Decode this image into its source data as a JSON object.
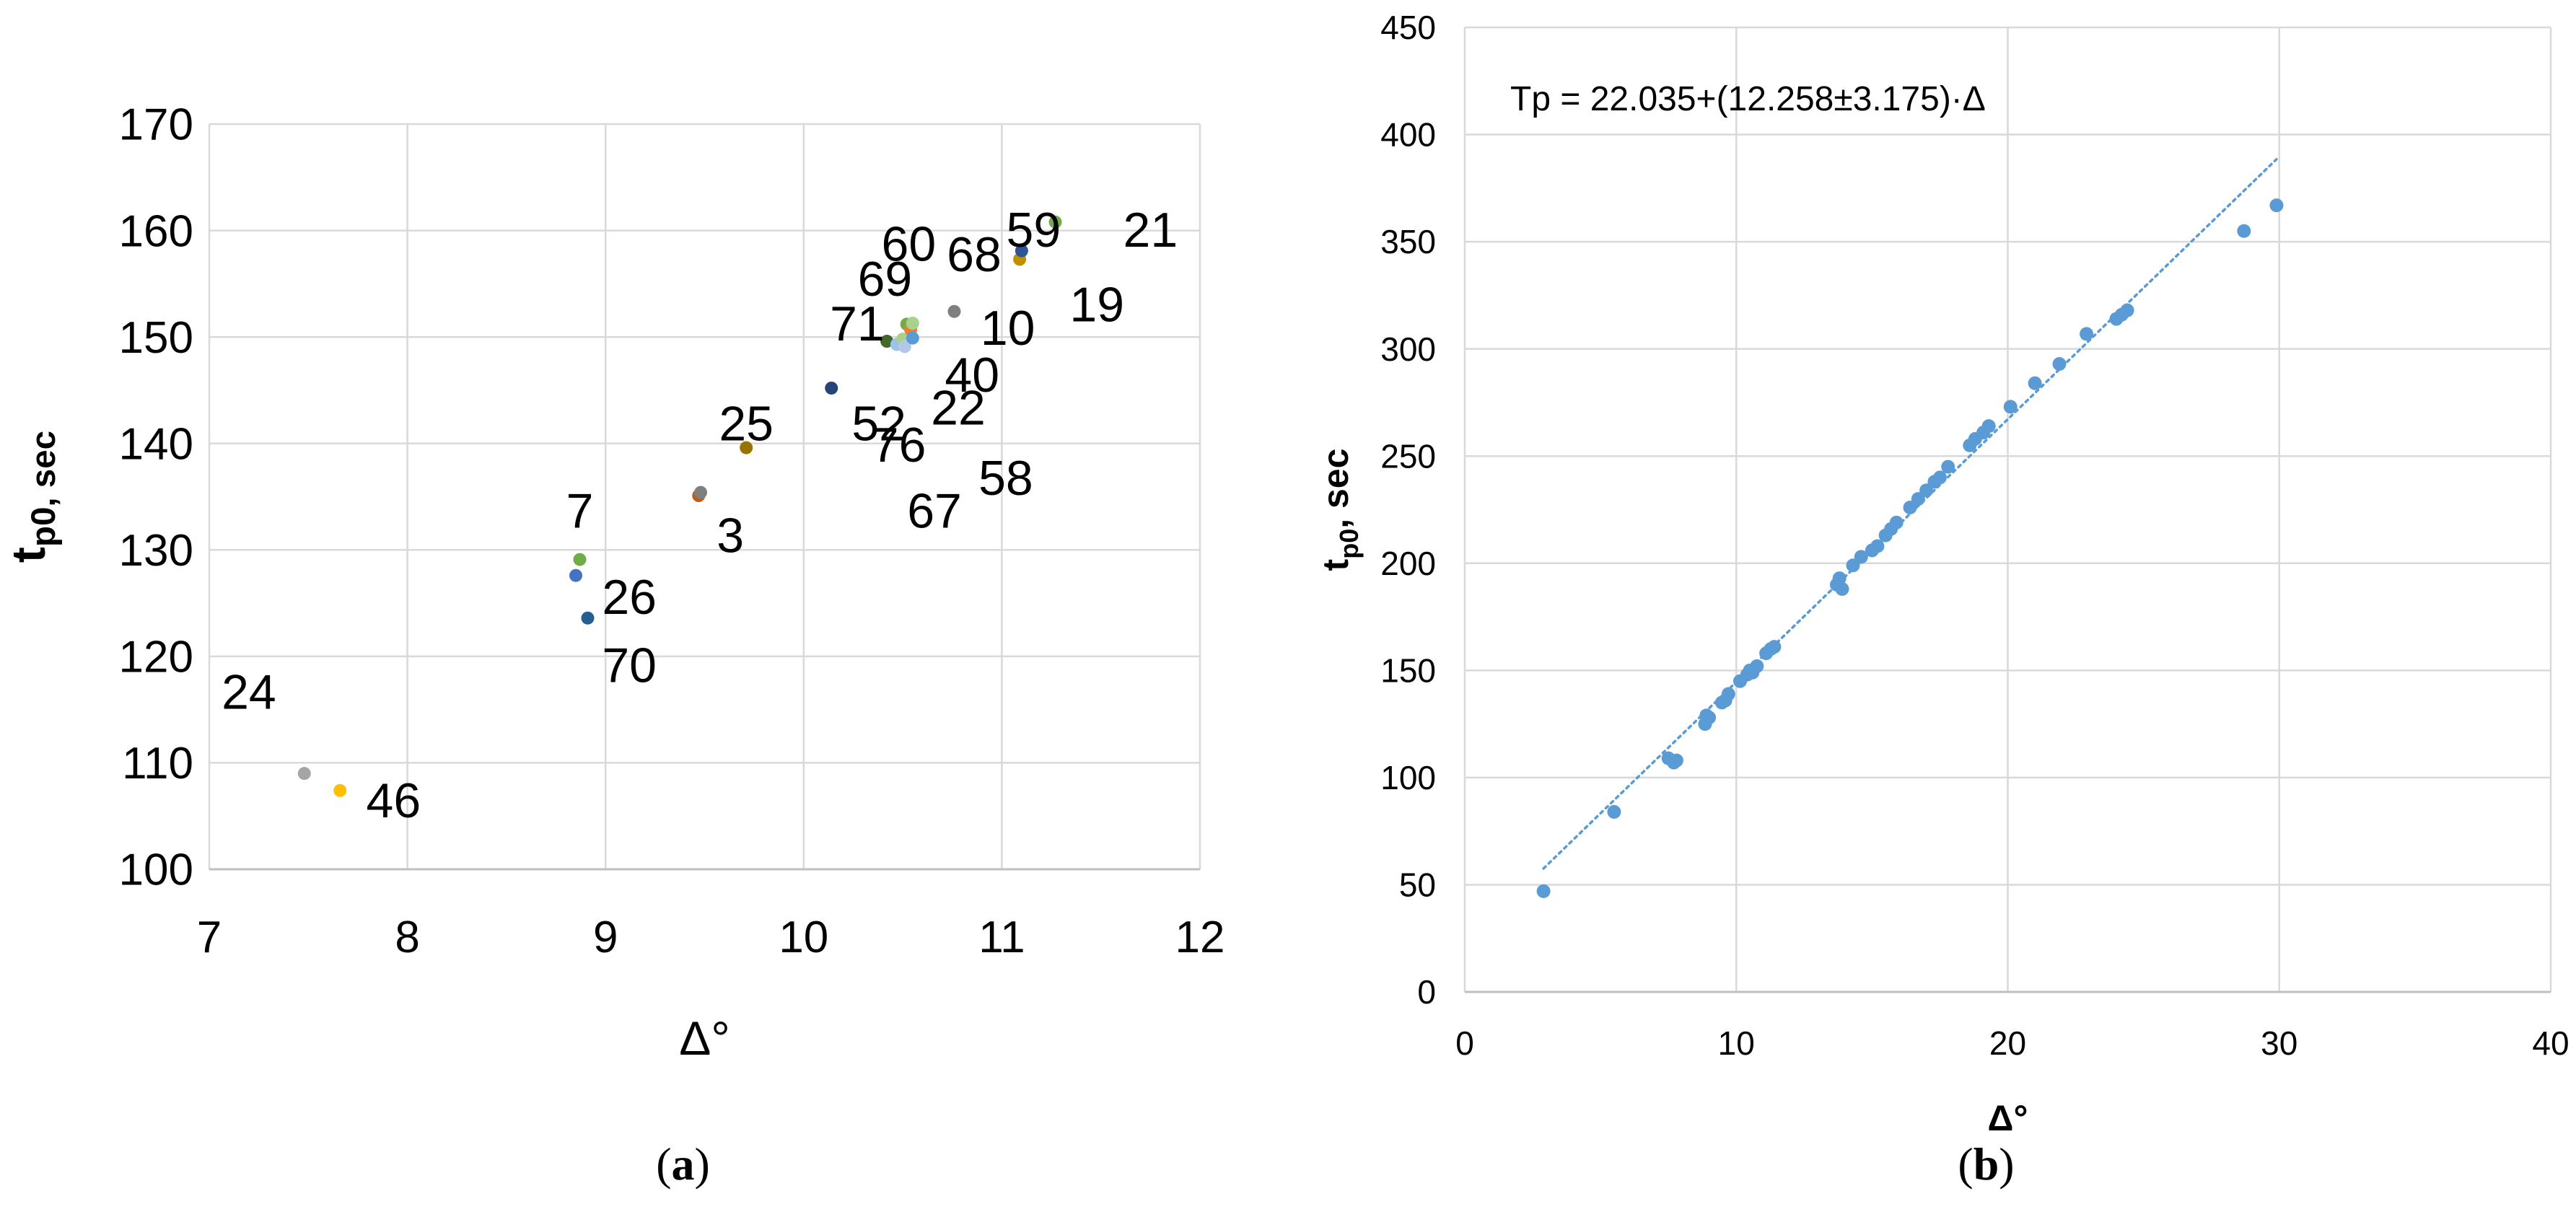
{
  "chart_data": [
    {
      "id": "a",
      "type": "scatter",
      "panel_label": "a",
      "ylabel_main": "t",
      "ylabel_sub": "p0, sec",
      "xlabel": "Δ°",
      "xlim": [
        7,
        12
      ],
      "ylim": [
        100,
        170
      ],
      "xticks": [
        7,
        8,
        9,
        10,
        11,
        12
      ],
      "yticks": [
        100,
        110,
        120,
        130,
        140,
        150,
        160,
        170
      ],
      "grid": true,
      "points": [
        {
          "x": 7.48,
          "y": 109.0,
          "color": "#a5a5a5"
        },
        {
          "x": 7.66,
          "y": 107.4,
          "color": "#ffc000"
        },
        {
          "x": 8.85,
          "y": 127.6,
          "color": "#4472c4"
        },
        {
          "x": 8.87,
          "y": 129.1,
          "color": "#70ad47"
        },
        {
          "x": 8.91,
          "y": 123.6,
          "color": "#255e91"
        },
        {
          "x": 9.47,
          "y": 135.1,
          "color": "#c55a11"
        },
        {
          "x": 9.48,
          "y": 135.4,
          "color": "#7f7f7f"
        },
        {
          "x": 9.71,
          "y": 139.6,
          "color": "#997300"
        },
        {
          "x": 10.14,
          "y": 145.2,
          "color": "#264478"
        },
        {
          "x": 10.42,
          "y": 149.6,
          "color": "#43682b"
        },
        {
          "x": 10.47,
          "y": 149.3,
          "color": "#9dc3e6"
        },
        {
          "x": 10.5,
          "y": 149.8,
          "color": "#a9d18e"
        },
        {
          "x": 10.51,
          "y": 149.1,
          "color": "#b4c7e7"
        },
        {
          "x": 10.52,
          "y": 151.2,
          "color": "#70ad47"
        },
        {
          "x": 10.54,
          "y": 150.7,
          "color": "#ed7d31"
        },
        {
          "x": 10.55,
          "y": 149.9,
          "color": "#5b9bd5"
        },
        {
          "x": 10.55,
          "y": 151.3,
          "color": "#a9d18e"
        },
        {
          "x": 10.76,
          "y": 152.4,
          "color": "#7f7f7f"
        },
        {
          "x": 11.09,
          "y": 157.3,
          "color": "#bf9000"
        },
        {
          "x": 11.1,
          "y": 158.1,
          "color": "#2f5597"
        },
        {
          "x": 11.27,
          "y": 160.8,
          "color": "#70ad47"
        }
      ],
      "labels": [
        {
          "text": "24",
          "x": 7.2,
          "y": 116.7
        },
        {
          "text": "46",
          "x": 7.93,
          "y": 106.5
        },
        {
          "text": "7",
          "x": 8.87,
          "y": 133.7
        },
        {
          "text": "26",
          "x": 9.12,
          "y": 125.6
        },
        {
          "text": "70",
          "x": 9.12,
          "y": 119.2
        },
        {
          "text": "25",
          "x": 9.71,
          "y": 141.9
        },
        {
          "text": "3",
          "x": 9.63,
          "y": 131.4
        },
        {
          "text": "52",
          "x": 10.38,
          "y": 141.9
        },
        {
          "text": "76",
          "x": 10.48,
          "y": 139.9
        },
        {
          "text": "22",
          "x": 10.78,
          "y": 143.4
        },
        {
          "text": "58",
          "x": 11.02,
          "y": 136.8
        },
        {
          "text": "67",
          "x": 10.66,
          "y": 133.7
        },
        {
          "text": "71",
          "x": 10.27,
          "y": 151.3
        },
        {
          "text": "69",
          "x": 10.41,
          "y": 155.5
        },
        {
          "text": "60",
          "x": 10.53,
          "y": 158.8
        },
        {
          "text": "68",
          "x": 10.86,
          "y": 157.8
        },
        {
          "text": "59",
          "x": 11.16,
          "y": 160.1
        },
        {
          "text": "21",
          "x": 11.75,
          "y": 160.1
        },
        {
          "text": "19",
          "x": 11.48,
          "y": 153.1
        },
        {
          "text": "10",
          "x": 11.03,
          "y": 150.9
        },
        {
          "text": "40",
          "x": 10.85,
          "y": 146.5
        }
      ]
    },
    {
      "id": "b",
      "type": "scatter",
      "panel_label": "b",
      "ylabel_main": "t",
      "ylabel_sub": "p0",
      "ylabel_suffix": ", sec",
      "xlabel": "Δ°",
      "xlim": [
        0,
        40
      ],
      "ylim": [
        0,
        450
      ],
      "xticks": [
        0,
        10,
        20,
        30,
        40
      ],
      "yticks": [
        0,
        50,
        100,
        150,
        200,
        250,
        300,
        350,
        400,
        450
      ],
      "grid": true,
      "annotation": "Tp = 22.035+(12.258±3.175)·Δ",
      "trendline": {
        "x": [
          2.9,
          29.9
        ],
        "y": [
          57.6,
          388.5
        ],
        "style": "dotted"
      },
      "series_color": "#5b9bd5",
      "points": [
        {
          "x": 2.9,
          "y": 47
        },
        {
          "x": 5.5,
          "y": 84
        },
        {
          "x": 7.5,
          "y": 109
        },
        {
          "x": 7.7,
          "y": 107
        },
        {
          "x": 7.8,
          "y": 108
        },
        {
          "x": 8.85,
          "y": 125
        },
        {
          "x": 8.9,
          "y": 129
        },
        {
          "x": 9.0,
          "y": 128
        },
        {
          "x": 9.47,
          "y": 135
        },
        {
          "x": 9.6,
          "y": 136
        },
        {
          "x": 9.71,
          "y": 139
        },
        {
          "x": 10.14,
          "y": 145
        },
        {
          "x": 10.4,
          "y": 148
        },
        {
          "x": 10.5,
          "y": 150
        },
        {
          "x": 10.6,
          "y": 149
        },
        {
          "x": 10.76,
          "y": 152
        },
        {
          "x": 11.1,
          "y": 158
        },
        {
          "x": 11.27,
          "y": 160
        },
        {
          "x": 11.4,
          "y": 161
        },
        {
          "x": 13.7,
          "y": 190
        },
        {
          "x": 13.8,
          "y": 193
        },
        {
          "x": 13.9,
          "y": 188
        },
        {
          "x": 14.3,
          "y": 199
        },
        {
          "x": 14.6,
          "y": 203
        },
        {
          "x": 15.0,
          "y": 206
        },
        {
          "x": 15.2,
          "y": 208
        },
        {
          "x": 15.5,
          "y": 213
        },
        {
          "x": 15.7,
          "y": 216
        },
        {
          "x": 15.9,
          "y": 219
        },
        {
          "x": 16.4,
          "y": 226
        },
        {
          "x": 16.7,
          "y": 230
        },
        {
          "x": 17.0,
          "y": 234
        },
        {
          "x": 17.3,
          "y": 238
        },
        {
          "x": 17.5,
          "y": 240
        },
        {
          "x": 17.8,
          "y": 245
        },
        {
          "x": 18.6,
          "y": 255
        },
        {
          "x": 18.8,
          "y": 258
        },
        {
          "x": 19.1,
          "y": 261
        },
        {
          "x": 19.3,
          "y": 264
        },
        {
          "x": 20.1,
          "y": 273
        },
        {
          "x": 21.0,
          "y": 284
        },
        {
          "x": 21.9,
          "y": 293
        },
        {
          "x": 22.9,
          "y": 307
        },
        {
          "x": 24.0,
          "y": 314
        },
        {
          "x": 24.2,
          "y": 316
        },
        {
          "x": 24.4,
          "y": 318
        },
        {
          "x": 28.7,
          "y": 355
        },
        {
          "x": 29.9,
          "y": 367
        }
      ]
    }
  ]
}
